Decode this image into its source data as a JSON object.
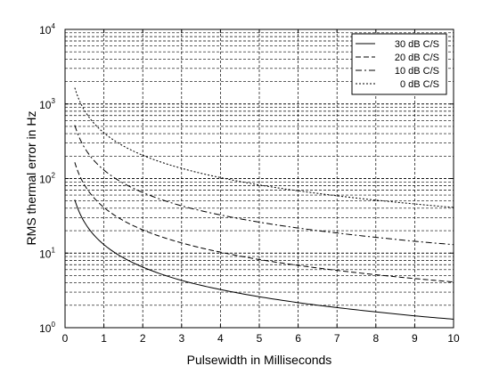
{
  "chart_data": {
    "type": "line",
    "xlabel": "Pulsewidth in Milliseconds",
    "ylabel": "RMS thermal error in Hz",
    "xlim": [
      0,
      10
    ],
    "ylim": [
      1,
      10000
    ],
    "yscale": "log",
    "grid": true,
    "legend_position": "top-right",
    "x_ticks": [
      "0",
      "1",
      "2",
      "3",
      "4",
      "5",
      "6",
      "7",
      "8",
      "9",
      "10"
    ],
    "y_ticks": [
      {
        "base": "10",
        "exp": "0"
      },
      {
        "base": "10",
        "exp": "1"
      },
      {
        "base": "10",
        "exp": "2"
      },
      {
        "base": "10",
        "exp": "3"
      },
      {
        "base": "10",
        "exp": "4"
      }
    ],
    "x": [
      0.25,
      0.5,
      1,
      2,
      3,
      4,
      5,
      6,
      7,
      8,
      9,
      10
    ],
    "series": [
      {
        "name": "30 dB C/S",
        "dash": "solid",
        "values": [
          52,
          26,
          13,
          6.5,
          4.3,
          3.25,
          2.6,
          2.17,
          1.86,
          1.63,
          1.44,
          1.3
        ]
      },
      {
        "name": "20 dB C/S",
        "dash": "dash",
        "values": [
          165,
          82,
          41,
          20.5,
          13.7,
          10.3,
          8.2,
          6.85,
          5.87,
          5.13,
          4.56,
          4.1
        ]
      },
      {
        "name": "10 dB C/S",
        "dash": "dashdot",
        "values": [
          520,
          260,
          130,
          65,
          43,
          32.5,
          26,
          21.7,
          18.6,
          16.3,
          14.4,
          13
        ]
      },
      {
        "name": "0 dB C/S",
        "dash": "dot",
        "values": [
          1650,
          820,
          410,
          205,
          137,
          103,
          82,
          68.5,
          58.7,
          51.3,
          45.6,
          41
        ]
      }
    ],
    "colors": {
      "line": "#000000",
      "background": "#ffffff"
    }
  }
}
